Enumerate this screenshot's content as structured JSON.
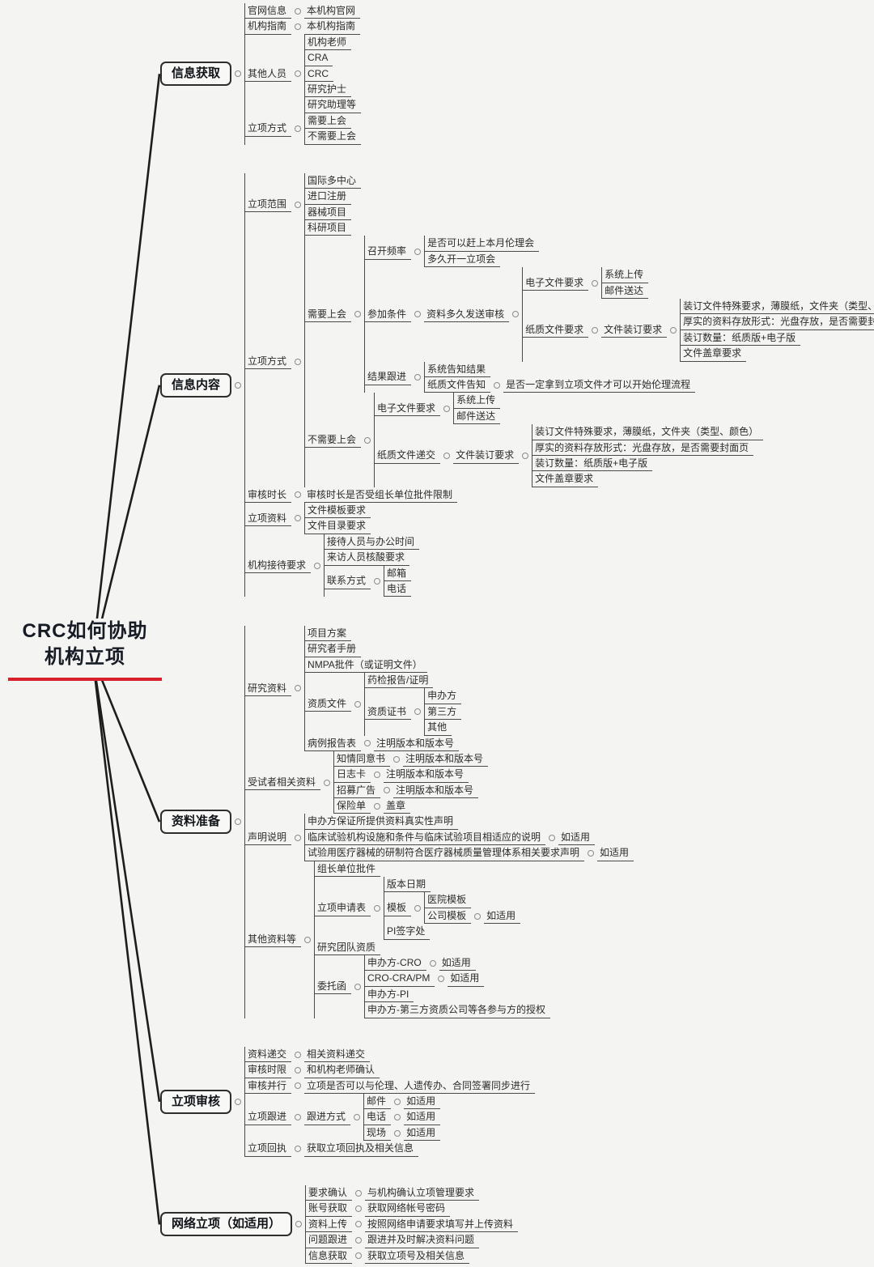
{
  "colors": {
    "accent_red": "#d8202a",
    "connector": "#1d1d1d",
    "node_line": "#4a4a4a",
    "text": "#2b2b2b"
  },
  "mindmap": {
    "root": {
      "line1": "CRC如何协助",
      "line2": "机构立项"
    },
    "branches": [
      {
        "t": "信息获取",
        "box": true,
        "c": [
          {
            "t": "官网信息",
            "c": [
              {
                "t": "本机构官网"
              }
            ]
          },
          {
            "t": "机构指南",
            "c": [
              {
                "t": "本机构指南"
              }
            ]
          },
          {
            "t": "其他人员",
            "c": [
              {
                "t": "机构老师"
              },
              {
                "t": "CRA"
              },
              {
                "t": "CRC"
              },
              {
                "t": "研究护士"
              },
              {
                "t": "研究助理等"
              }
            ]
          },
          {
            "t": "立项方式",
            "c": [
              {
                "t": "需要上会"
              },
              {
                "t": "不需要上会"
              }
            ]
          }
        ]
      },
      {
        "t": "信息内容",
        "box": true,
        "c": [
          {
            "t": "立项范围",
            "c": [
              {
                "t": "国际多中心"
              },
              {
                "t": "进口注册"
              },
              {
                "t": "器械项目"
              },
              {
                "t": "科研项目"
              }
            ]
          },
          {
            "t": "立项方式",
            "c": [
              {
                "t": "需要上会",
                "c": [
                  {
                    "t": "召开频率",
                    "c": [
                      {
                        "t": "是否可以赶上本月伦理会"
                      },
                      {
                        "t": "多久开一立项会"
                      }
                    ]
                  },
                  {
                    "t": "参加条件",
                    "c": [
                      {
                        "t": "资料多久发送审核",
                        "c": [
                          {
                            "t": "电子文件要求",
                            "c": [
                              {
                                "t": "系统上传"
                              },
                              {
                                "t": "邮件送达"
                              }
                            ]
                          },
                          {
                            "t": "纸质文件要求",
                            "c": [
                              {
                                "t": "文件装订要求",
                                "c": [
                                  {
                                    "t": "装订文件特殊要求，薄膜纸，文件夹（类型、颜色）"
                                  },
                                  {
                                    "t": "厚实的资料存放形式：光盘存放，是否需要封面页"
                                  },
                                  {
                                    "t": "装订数量：纸质版+电子版"
                                  },
                                  {
                                    "t": "文件盖章要求"
                                  }
                                ]
                              }
                            ]
                          }
                        ]
                      }
                    ]
                  },
                  {
                    "t": "结果跟进",
                    "c": [
                      {
                        "t": "系统告知结果"
                      },
                      {
                        "t": "纸质文件告知",
                        "c": [
                          {
                            "t": "是否一定拿到立项文件才可以开始伦理流程"
                          }
                        ]
                      }
                    ]
                  }
                ]
              },
              {
                "t": "不需要上会",
                "c": [
                  {
                    "t": "电子文件要求",
                    "c": [
                      {
                        "t": "系统上传"
                      },
                      {
                        "t": "邮件送达"
                      }
                    ]
                  },
                  {
                    "t": "纸质文件递交",
                    "c": [
                      {
                        "t": "文件装订要求",
                        "c": [
                          {
                            "t": "装订文件特殊要求，薄膜纸，文件夹（类型、颜色）"
                          },
                          {
                            "t": "厚实的资料存放形式：光盘存放，是否需要封面页"
                          },
                          {
                            "t": "装订数量：纸质版+电子版"
                          },
                          {
                            "t": "文件盖章要求"
                          }
                        ]
                      }
                    ]
                  }
                ]
              }
            ]
          },
          {
            "t": "审核时长",
            "c": [
              {
                "t": "审核时长是否受组长单位批件限制"
              }
            ]
          },
          {
            "t": "立项资料",
            "c": [
              {
                "t": "文件模板要求"
              },
              {
                "t": "文件目录要求"
              }
            ]
          },
          {
            "t": "机构接待要求",
            "c": [
              {
                "t": "接待人员与办公时间"
              },
              {
                "t": "来访人员核酸要求"
              },
              {
                "t": "联系方式",
                "c": [
                  {
                    "t": "邮箱"
                  },
                  {
                    "t": "电话"
                  }
                ]
              }
            ]
          }
        ]
      },
      {
        "t": "资料准备",
        "box": true,
        "c": [
          {
            "t": "研究资料",
            "c": [
              {
                "t": "项目方案"
              },
              {
                "t": "研究者手册"
              },
              {
                "t": "NMPA批件（或证明文件）"
              },
              {
                "t": "资质文件",
                "c": [
                  {
                    "t": "药检报告/证明"
                  },
                  {
                    "t": "资质证书",
                    "c": [
                      {
                        "t": "申办方"
                      },
                      {
                        "t": "第三方"
                      },
                      {
                        "t": "其他"
                      }
                    ]
                  }
                ]
              },
              {
                "t": "病例报告表",
                "c": [
                  {
                    "t": "注明版本和版本号"
                  }
                ]
              }
            ]
          },
          {
            "t": "受试者相关资料",
            "c": [
              {
                "t": "知情同意书",
                "c": [
                  {
                    "t": "注明版本和版本号"
                  }
                ]
              },
              {
                "t": "日志卡",
                "c": [
                  {
                    "t": "注明版本和版本号"
                  }
                ]
              },
              {
                "t": "招募广告",
                "c": [
                  {
                    "t": "注明版本和版本号"
                  }
                ]
              },
              {
                "t": "保险单",
                "c": [
                  {
                    "t": "盖章"
                  }
                ]
              }
            ]
          },
          {
            "t": "声明说明",
            "c": [
              {
                "t": "申办方保证所提供资料真实性声明"
              },
              {
                "t": "临床试验机构设施和条件与临床试验项目相适应的说明",
                "c": [
                  {
                    "t": "如适用"
                  }
                ]
              },
              {
                "t": "试验用医疗器械的研制符合医疗器械质量管理体系相关要求声明",
                "c": [
                  {
                    "t": "如适用"
                  }
                ]
              }
            ]
          },
          {
            "t": "其他资料等",
            "c": [
              {
                "t": "组长单位批件"
              },
              {
                "t": "立项申请表",
                "c": [
                  {
                    "t": "版本日期"
                  },
                  {
                    "t": "模板",
                    "c": [
                      {
                        "t": "医院模板"
                      },
                      {
                        "t": "公司模板",
                        "c": [
                          {
                            "t": "如适用"
                          }
                        ]
                      }
                    ]
                  },
                  {
                    "t": "PI签字处"
                  }
                ]
              },
              {
                "t": "研究团队资质"
              },
              {
                "t": "委托函",
                "c": [
                  {
                    "t": "申办方-CRO",
                    "c": [
                      {
                        "t": "如适用"
                      }
                    ]
                  },
                  {
                    "t": "CRO-CRA/PM",
                    "c": [
                      {
                        "t": "如适用"
                      }
                    ]
                  },
                  {
                    "t": "申办方-PI"
                  },
                  {
                    "t": "申办方-第三方资质公司等各参与方的授权"
                  }
                ]
              }
            ]
          }
        ]
      },
      {
        "t": "立项审核",
        "box": true,
        "c": [
          {
            "t": "资料递交",
            "c": [
              {
                "t": "相关资料递交"
              }
            ]
          },
          {
            "t": "审核时限",
            "c": [
              {
                "t": "和机构老师确认"
              }
            ]
          },
          {
            "t": "审核并行",
            "c": [
              {
                "t": "立项是否可以与伦理、人遗传办、合同签署同步进行"
              }
            ]
          },
          {
            "t": "立项跟进",
            "c": [
              {
                "t": "跟进方式",
                "c": [
                  {
                    "t": "邮件",
                    "c": [
                      {
                        "t": "如适用"
                      }
                    ]
                  },
                  {
                    "t": "电话",
                    "c": [
                      {
                        "t": "如适用"
                      }
                    ]
                  },
                  {
                    "t": "现场",
                    "c": [
                      {
                        "t": "如适用"
                      }
                    ]
                  }
                ]
              }
            ]
          },
          {
            "t": "立项回执",
            "c": [
              {
                "t": "获取立项回执及相关信息"
              }
            ]
          }
        ]
      },
      {
        "t": "网络立项（如适用）",
        "box": true,
        "c": [
          {
            "t": "要求确认",
            "c": [
              {
                "t": "与机构确认立项管理要求"
              }
            ]
          },
          {
            "t": "账号获取",
            "c": [
              {
                "t": "获取网络帐号密码"
              }
            ]
          },
          {
            "t": "资料上传",
            "c": [
              {
                "t": "按照网络申请要求填写并上传资料"
              }
            ]
          },
          {
            "t": "问题跟进",
            "c": [
              {
                "t": "跟进并及时解决资料问题"
              }
            ]
          },
          {
            "t": "信息获取",
            "c": [
              {
                "t": "获取立项号及相关信息"
              }
            ]
          }
        ]
      }
    ]
  }
}
